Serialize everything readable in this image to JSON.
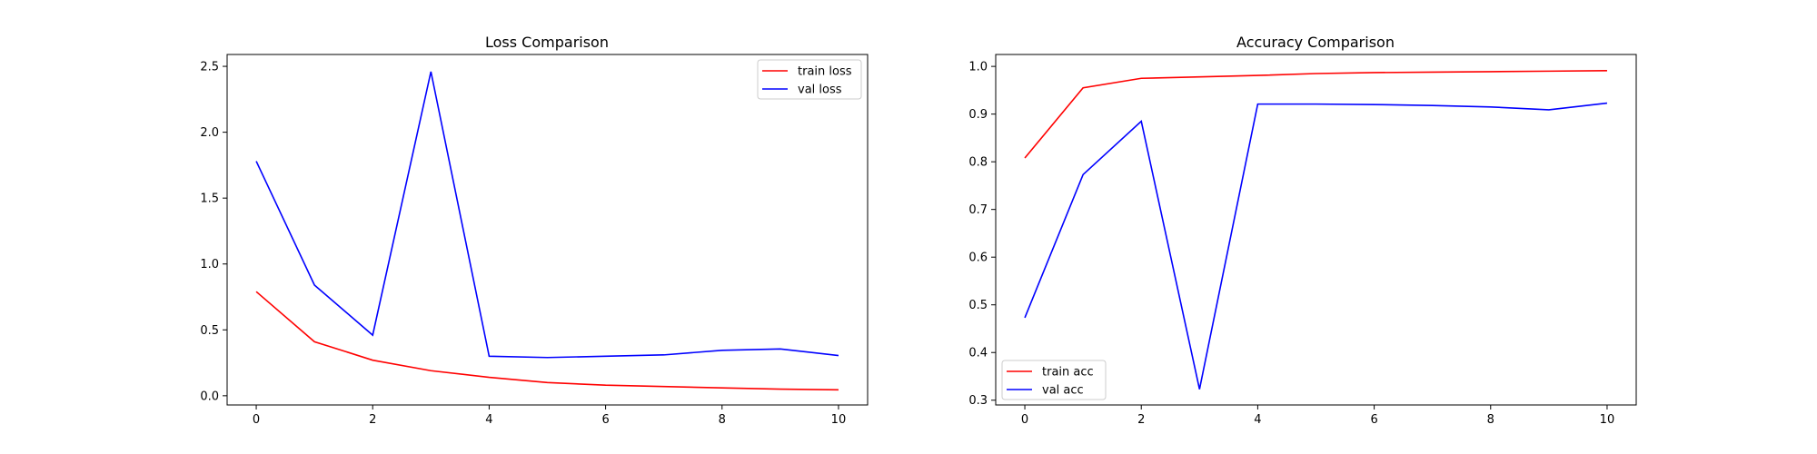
{
  "chart_data": [
    {
      "type": "line",
      "title": "Loss Comparison",
      "xlabel": "",
      "ylabel": "",
      "x": [
        0,
        1,
        2,
        3,
        4,
        5,
        6,
        7,
        8,
        9,
        10
      ],
      "xlim": [
        -0.5,
        10.5
      ],
      "ylim": [
        -0.07,
        2.59
      ],
      "xticks": [
        0,
        2,
        4,
        6,
        8,
        10
      ],
      "yticks": [
        0.0,
        0.5,
        1.0,
        1.5,
        2.0,
        2.5
      ],
      "ytick_labels": [
        "0.0",
        "0.5",
        "1.0",
        "1.5",
        "2.0",
        "2.5"
      ],
      "xtick_labels": [
        "0",
        "2",
        "4",
        "6",
        "8",
        "10"
      ],
      "grid": false,
      "legend_position": "top-right",
      "series": [
        {
          "name": "train loss",
          "color": "#ff0000",
          "values": [
            0.79,
            0.41,
            0.27,
            0.19,
            0.14,
            0.1,
            0.08,
            0.07,
            0.06,
            0.05,
            0.045
          ]
        },
        {
          "name": "val loss",
          "color": "#0000ff",
          "values": [
            1.78,
            0.84,
            0.46,
            2.46,
            0.3,
            0.29,
            0.3,
            0.31,
            0.345,
            0.355,
            0.305
          ]
        }
      ]
    },
    {
      "type": "line",
      "title": "Accuracy Comparison",
      "xlabel": "",
      "ylabel": "",
      "x": [
        0,
        1,
        2,
        3,
        4,
        5,
        6,
        7,
        8,
        9,
        10
      ],
      "xlim": [
        -0.5,
        10.5
      ],
      "ylim": [
        0.29,
        1.025
      ],
      "xticks": [
        0,
        2,
        4,
        6,
        8,
        10
      ],
      "yticks": [
        0.3,
        0.4,
        0.5,
        0.6,
        0.7,
        0.8,
        0.9,
        1.0
      ],
      "ytick_labels": [
        "0.3",
        "0.4",
        "0.5",
        "0.6",
        "0.7",
        "0.8",
        "0.9",
        "1.0"
      ],
      "xtick_labels": [
        "0",
        "2",
        "4",
        "6",
        "8",
        "10"
      ],
      "grid": false,
      "legend_position": "bottom-left",
      "series": [
        {
          "name": "train acc",
          "color": "#ff0000",
          "values": [
            0.808,
            0.955,
            0.975,
            0.978,
            0.981,
            0.985,
            0.987,
            0.988,
            0.989,
            0.99,
            0.991
          ]
        },
        {
          "name": "val acc",
          "color": "#0000ff",
          "values": [
            0.473,
            0.773,
            0.885,
            0.323,
            0.921,
            0.921,
            0.92,
            0.918,
            0.915,
            0.909,
            0.923
          ]
        }
      ]
    }
  ]
}
